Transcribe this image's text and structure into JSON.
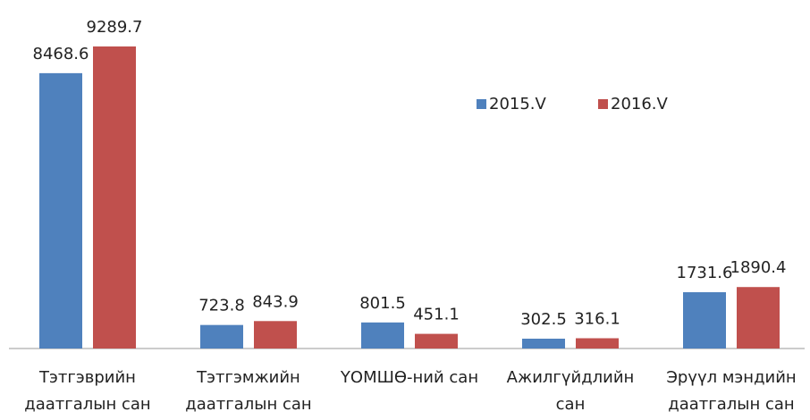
{
  "chart_data": {
    "type": "bar",
    "categories": [
      "Тэтгэврийн даатгалын сан",
      "Тэтгэмжийн даатгалын сан",
      "ҮОМШӨ-ний сан",
      "Ажилгүйдлийн сан",
      "Эрүүл мэндийн даатгалын сан"
    ],
    "series": [
      {
        "name": "2015.V",
        "color": "#4f81bd",
        "values": [
          8468.6,
          723.8,
          801.5,
          302.5,
          1731.6
        ]
      },
      {
        "name": "2016.V",
        "color": "#c0504d",
        "values": [
          9289.7,
          843.9,
          451.1,
          316.1,
          1890.4
        ]
      }
    ],
    "legend": "top-right"
  }
}
